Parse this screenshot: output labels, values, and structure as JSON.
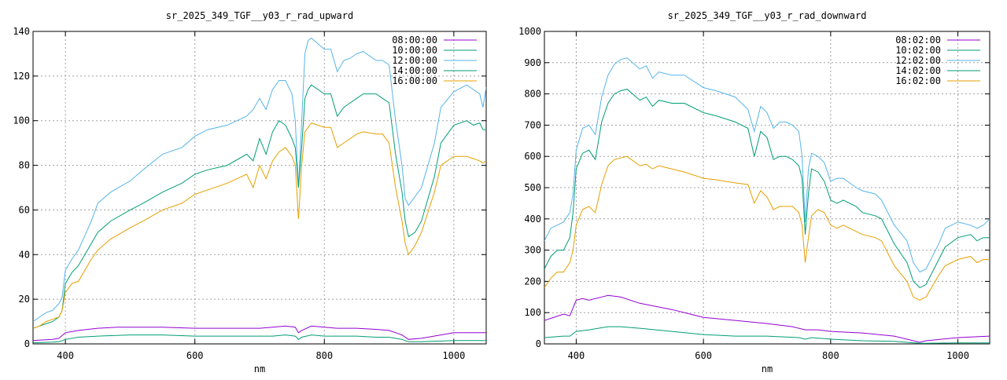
{
  "chart_data": [
    {
      "type": "line",
      "title": "sr_2025_349_TGF__y03_r_rad_upward",
      "xlabel": "nm",
      "ylabel": "",
      "xlim": [
        350,
        1050
      ],
      "ylim": [
        0,
        140
      ],
      "xticks": [
        400,
        600,
        800,
        1000
      ],
      "yticks": [
        0,
        20,
        40,
        60,
        80,
        100,
        120,
        140
      ],
      "grid": true,
      "legend_position": "top-right",
      "series": [
        {
          "name": "08:00:00",
          "color": "#9400d3",
          "x": [
            350,
            380,
            390,
            400,
            420,
            450,
            480,
            500,
            550,
            600,
            650,
            700,
            720,
            740,
            755,
            760,
            765,
            780,
            800,
            820,
            850,
            880,
            900,
            920,
            930,
            950,
            1000,
            1020,
            1050
          ],
          "y": [
            1.5,
            2,
            2.5,
            5,
            6,
            7,
            7.5,
            7.5,
            7.5,
            7,
            7,
            7,
            7.5,
            8,
            7.5,
            5,
            6,
            8,
            7.5,
            7,
            7,
            6.5,
            6,
            4,
            2,
            2.5,
            5,
            5,
            5
          ]
        },
        {
          "name": "10:00:00",
          "color": "#009e73",
          "x": [
            350,
            380,
            390,
            400,
            420,
            450,
            500,
            550,
            600,
            650,
            700,
            720,
            740,
            755,
            760,
            765,
            780,
            800,
            820,
            850,
            880,
            900,
            920,
            930,
            950,
            1000,
            1020,
            1050
          ],
          "y": [
            0.5,
            0.8,
            1,
            2,
            3,
            3.5,
            4,
            4,
            3.5,
            3.5,
            3.5,
            3.5,
            4,
            3.5,
            2,
            3,
            4,
            3.5,
            3.5,
            3.5,
            3,
            3,
            2,
            1,
            1,
            1.5,
            1.5,
            1.5
          ]
        },
        {
          "name": "12:00:00",
          "color": "#56b4e9",
          "x": [
            350,
            360,
            370,
            380,
            390,
            395,
            400,
            410,
            420,
            440,
            450,
            470,
            500,
            520,
            550,
            580,
            600,
            620,
            650,
            680,
            690,
            700,
            710,
            720,
            730,
            740,
            750,
            755,
            760,
            765,
            770,
            775,
            780,
            800,
            810,
            820,
            830,
            840,
            850,
            860,
            880,
            890,
            900,
            910,
            920,
            925,
            930,
            940,
            950,
            970,
            980,
            1000,
            1020,
            1030,
            1040,
            1045,
            1050
          ],
          "y": [
            10,
            12,
            14,
            15,
            18,
            21,
            33,
            38,
            42,
            55,
            63,
            68,
            73,
            78,
            85,
            88,
            93,
            96,
            98,
            102,
            105,
            110,
            105,
            114,
            118,
            118,
            112,
            100,
            70,
            100,
            130,
            136,
            137,
            132,
            132,
            122,
            127,
            128,
            130,
            131,
            127,
            127,
            125,
            100,
            80,
            65,
            62,
            66,
            70,
            90,
            106,
            113,
            116,
            114,
            112,
            106,
            115
          ]
        },
        {
          "name": "14:00:00",
          "color": "#009e73",
          "x": [
            350,
            360,
            370,
            380,
            390,
            395,
            400,
            410,
            420,
            440,
            450,
            470,
            500,
            520,
            550,
            580,
            600,
            620,
            650,
            680,
            690,
            700,
            710,
            720,
            730,
            740,
            750,
            755,
            760,
            765,
            770,
            775,
            780,
            800,
            810,
            820,
            830,
            840,
            850,
            860,
            880,
            890,
            900,
            910,
            920,
            925,
            930,
            940,
            950,
            970,
            980,
            1000,
            1020,
            1030,
            1040,
            1045,
            1050
          ],
          "y": [
            7,
            8,
            9,
            10,
            12,
            15,
            27,
            32,
            35,
            45,
            50,
            55,
            60,
            63,
            68,
            72,
            76,
            78,
            80,
            85,
            82,
            92,
            85,
            95,
            100,
            98,
            92,
            88,
            70,
            88,
            110,
            114,
            116,
            112,
            112,
            102,
            106,
            108,
            110,
            112,
            112,
            110,
            108,
            85,
            68,
            55,
            48,
            50,
            55,
            75,
            90,
            98,
            100,
            98,
            99,
            96,
            96
          ]
        },
        {
          "name": "16:00:00",
          "color": "#e69f00",
          "x": [
            350,
            360,
            370,
            380,
            390,
            395,
            400,
            410,
            420,
            440,
            450,
            470,
            500,
            520,
            550,
            580,
            600,
            620,
            650,
            680,
            690,
            700,
            710,
            720,
            730,
            740,
            750,
            755,
            760,
            765,
            770,
            775,
            780,
            800,
            810,
            820,
            830,
            840,
            850,
            860,
            880,
            890,
            900,
            910,
            920,
            925,
            930,
            940,
            950,
            970,
            980,
            1000,
            1020,
            1030,
            1040,
            1045,
            1050
          ],
          "y": [
            7,
            8,
            10,
            11,
            12,
            15,
            23,
            27,
            28,
            38,
            42,
            47,
            52,
            55,
            60,
            63,
            67,
            69,
            72,
            76,
            70,
            80,
            74,
            82,
            86,
            88,
            84,
            80,
            56,
            80,
            95,
            97,
            99,
            97,
            97,
            88,
            90,
            92,
            94,
            95,
            94,
            94,
            90,
            70,
            55,
            45,
            40,
            44,
            50,
            68,
            80,
            84,
            84,
            83,
            82,
            81,
            82
          ]
        }
      ]
    },
    {
      "type": "line",
      "title": "sr_2025_349_TGF__y03_r_rad_downward",
      "xlabel": "nm",
      "ylabel": "",
      "xlim": [
        350,
        1050
      ],
      "ylim": [
        0,
        1000
      ],
      "xticks": [
        400,
        600,
        800,
        1000
      ],
      "yticks": [
        0,
        100,
        200,
        300,
        400,
        500,
        600,
        700,
        800,
        900,
        1000
      ],
      "grid": true,
      "legend_position": "top-right",
      "series": [
        {
          "name": "08:02:00",
          "color": "#9400d3",
          "x": [
            350,
            380,
            390,
            400,
            410,
            420,
            440,
            450,
            470,
            500,
            550,
            600,
            650,
            700,
            740,
            760,
            780,
            800,
            850,
            900,
            920,
            940,
            950,
            1000,
            1050
          ],
          "y": [
            75,
            95,
            90,
            140,
            145,
            140,
            150,
            155,
            150,
            130,
            110,
            85,
            75,
            65,
            55,
            45,
            45,
            40,
            35,
            25,
            15,
            5,
            10,
            20,
            25
          ]
        },
        {
          "name": "10:02:00",
          "color": "#009e73",
          "x": [
            350,
            380,
            390,
            400,
            420,
            450,
            470,
            500,
            550,
            600,
            650,
            700,
            750,
            760,
            770,
            800,
            850,
            900,
            920,
            940,
            950,
            1000,
            1050
          ],
          "y": [
            20,
            25,
            25,
            40,
            45,
            55,
            55,
            50,
            40,
            30,
            25,
            25,
            20,
            15,
            20,
            15,
            10,
            8,
            5,
            2,
            2,
            3,
            3
          ]
        },
        {
          "name": "12:02:00",
          "color": "#56b4e9",
          "x": [
            350,
            360,
            370,
            380,
            390,
            395,
            400,
            410,
            420,
            430,
            440,
            450,
            460,
            470,
            480,
            500,
            510,
            520,
            530,
            550,
            570,
            600,
            620,
            650,
            670,
            680,
            690,
            700,
            710,
            720,
            730,
            740,
            750,
            755,
            760,
            765,
            770,
            780,
            790,
            800,
            810,
            820,
            840,
            850,
            870,
            880,
            900,
            920,
            930,
            940,
            950,
            970,
            980,
            1000,
            1020,
            1030,
            1040,
            1050
          ],
          "y": [
            330,
            370,
            380,
            390,
            420,
            480,
            620,
            690,
            700,
            670,
            790,
            860,
            895,
            910,
            915,
            880,
            890,
            850,
            870,
            860,
            860,
            820,
            810,
            790,
            750,
            680,
            760,
            740,
            690,
            710,
            710,
            700,
            680,
            600,
            390,
            560,
            610,
            600,
            580,
            520,
            530,
            530,
            500,
            490,
            480,
            460,
            380,
            330,
            260,
            230,
            240,
            320,
            370,
            390,
            380,
            370,
            380,
            400
          ]
        },
        {
          "name": "14:02:00",
          "color": "#009e73",
          "x": [
            350,
            360,
            370,
            380,
            390,
            395,
            400,
            410,
            420,
            430,
            440,
            450,
            460,
            470,
            480,
            500,
            510,
            520,
            530,
            550,
            570,
            600,
            620,
            650,
            670,
            680,
            690,
            700,
            710,
            720,
            730,
            740,
            750,
            755,
            760,
            765,
            770,
            780,
            790,
            800,
            810,
            820,
            840,
            850,
            870,
            880,
            900,
            920,
            930,
            940,
            950,
            970,
            980,
            1000,
            1020,
            1030,
            1040,
            1050
          ],
          "y": [
            240,
            280,
            300,
            300,
            340,
            420,
            560,
            610,
            620,
            590,
            710,
            770,
            800,
            810,
            815,
            780,
            790,
            760,
            780,
            770,
            770,
            740,
            730,
            710,
            690,
            600,
            680,
            660,
            590,
            600,
            600,
            590,
            570,
            530,
            350,
            480,
            560,
            550,
            520,
            460,
            450,
            460,
            440,
            420,
            410,
            400,
            320,
            260,
            200,
            180,
            190,
            270,
            310,
            340,
            350,
            330,
            340,
            340
          ]
        },
        {
          "name": "16:02:00",
          "color": "#e69f00",
          "x": [
            350,
            360,
            370,
            380,
            390,
            395,
            400,
            410,
            420,
            430,
            440,
            450,
            460,
            470,
            480,
            500,
            510,
            520,
            530,
            550,
            570,
            600,
            620,
            650,
            670,
            680,
            690,
            700,
            710,
            720,
            730,
            740,
            750,
            755,
            760,
            765,
            770,
            780,
            790,
            800,
            810,
            820,
            840,
            850,
            870,
            880,
            900,
            920,
            930,
            940,
            950,
            970,
            980,
            1000,
            1020,
            1030,
            1040,
            1050
          ],
          "y": [
            180,
            210,
            230,
            230,
            260,
            300,
            380,
            430,
            440,
            420,
            510,
            570,
            590,
            595,
            600,
            570,
            575,
            560,
            570,
            560,
            550,
            530,
            525,
            515,
            510,
            450,
            490,
            470,
            430,
            440,
            440,
            440,
            420,
            380,
            260,
            340,
            410,
            430,
            420,
            380,
            370,
            380,
            360,
            350,
            340,
            330,
            250,
            200,
            150,
            140,
            150,
            220,
            250,
            270,
            280,
            260,
            270,
            270
          ]
        }
      ]
    }
  ]
}
